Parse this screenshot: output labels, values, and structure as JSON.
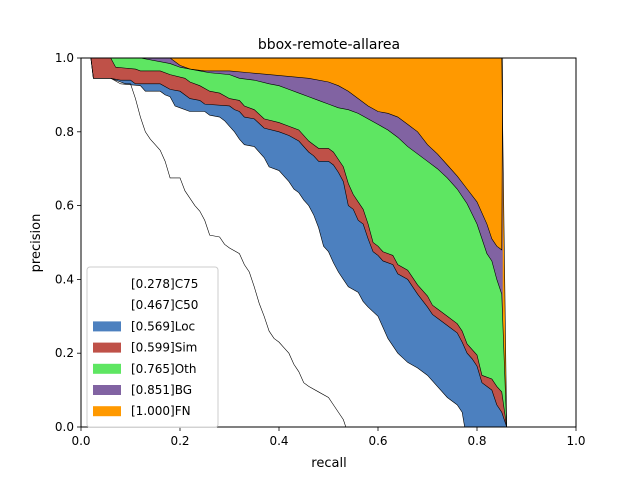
{
  "chart_data": {
    "type": "area",
    "title": "bbox-remote-allarea",
    "xlabel": "recall",
    "ylabel": "precision",
    "xlim": [
      0,
      1
    ],
    "ylim": [
      0,
      1
    ],
    "xticks": [
      "0.0",
      "0.2",
      "0.4",
      "0.6",
      "0.8",
      "1.0"
    ],
    "yticks": [
      "0.0",
      "0.2",
      "0.4",
      "0.6",
      "0.8",
      "1.0"
    ],
    "grid": false,
    "legend_position": "lower-left",
    "series": [
      {
        "name": "[0.278]C75",
        "color": "#ffffff",
        "points": [
          [
            0.0,
            1.0
          ],
          [
            0.02,
            1.0
          ],
          [
            0.025,
            0.945
          ],
          [
            0.06,
            0.945
          ],
          [
            0.08,
            0.935
          ],
          [
            0.09,
            0.93
          ],
          [
            0.1,
            0.93
          ],
          [
            0.11,
            0.89
          ],
          [
            0.12,
            0.84
          ],
          [
            0.13,
            0.8
          ],
          [
            0.14,
            0.78
          ],
          [
            0.15,
            0.765
          ],
          [
            0.16,
            0.75
          ],
          [
            0.17,
            0.72
          ],
          [
            0.18,
            0.675
          ],
          [
            0.2,
            0.675
          ],
          [
            0.21,
            0.64
          ],
          [
            0.22,
            0.62
          ],
          [
            0.23,
            0.6
          ],
          [
            0.24,
            0.585
          ],
          [
            0.25,
            0.56
          ],
          [
            0.26,
            0.52
          ],
          [
            0.28,
            0.515
          ],
          [
            0.29,
            0.495
          ],
          [
            0.3,
            0.485
          ],
          [
            0.32,
            0.47
          ],
          [
            0.33,
            0.44
          ],
          [
            0.34,
            0.42
          ],
          [
            0.35,
            0.38
          ],
          [
            0.36,
            0.335
          ],
          [
            0.37,
            0.3
          ],
          [
            0.38,
            0.26
          ],
          [
            0.39,
            0.24
          ],
          [
            0.4,
            0.23
          ],
          [
            0.41,
            0.215
          ],
          [
            0.42,
            0.2
          ],
          [
            0.43,
            0.17
          ],
          [
            0.44,
            0.15
          ],
          [
            0.45,
            0.12
          ],
          [
            0.46,
            0.11
          ],
          [
            0.48,
            0.095
          ],
          [
            0.5,
            0.08
          ],
          [
            0.51,
            0.06
          ],
          [
            0.52,
            0.04
          ],
          [
            0.53,
            0.02
          ],
          [
            0.535,
            0.0
          ]
        ]
      },
      {
        "name": "[0.467]C50",
        "color": "#ffffff",
        "points": [
          [
            0.0,
            1.0
          ],
          [
            0.02,
            1.0
          ],
          [
            0.025,
            0.945
          ],
          [
            0.06,
            0.945
          ],
          [
            0.08,
            0.93
          ],
          [
            0.12,
            0.925
          ],
          [
            0.13,
            0.91
          ],
          [
            0.16,
            0.91
          ],
          [
            0.17,
            0.9
          ],
          [
            0.18,
            0.895
          ],
          [
            0.19,
            0.87
          ],
          [
            0.2,
            0.865
          ],
          [
            0.22,
            0.855
          ],
          [
            0.25,
            0.855
          ],
          [
            0.26,
            0.845
          ],
          [
            0.28,
            0.84
          ],
          [
            0.29,
            0.83
          ],
          [
            0.3,
            0.815
          ],
          [
            0.31,
            0.8
          ],
          [
            0.32,
            0.78
          ],
          [
            0.33,
            0.765
          ],
          [
            0.35,
            0.76
          ],
          [
            0.37,
            0.73
          ],
          [
            0.38,
            0.705
          ],
          [
            0.4,
            0.695
          ],
          [
            0.41,
            0.68
          ],
          [
            0.42,
            0.665
          ],
          [
            0.43,
            0.645
          ],
          [
            0.44,
            0.635
          ],
          [
            0.45,
            0.615
          ],
          [
            0.46,
            0.6
          ],
          [
            0.47,
            0.575
          ],
          [
            0.48,
            0.54
          ],
          [
            0.49,
            0.49
          ],
          [
            0.5,
            0.475
          ],
          [
            0.51,
            0.445
          ],
          [
            0.52,
            0.42
          ],
          [
            0.53,
            0.4
          ],
          [
            0.54,
            0.38
          ],
          [
            0.56,
            0.365
          ],
          [
            0.57,
            0.34
          ],
          [
            0.58,
            0.325
          ],
          [
            0.6,
            0.3
          ],
          [
            0.61,
            0.27
          ],
          [
            0.62,
            0.24
          ],
          [
            0.64,
            0.2
          ],
          [
            0.66,
            0.175
          ],
          [
            0.68,
            0.16
          ],
          [
            0.7,
            0.14
          ],
          [
            0.72,
            0.11
          ],
          [
            0.74,
            0.08
          ],
          [
            0.76,
            0.06
          ],
          [
            0.77,
            0.04
          ],
          [
            0.775,
            0.0
          ]
        ]
      },
      {
        "name": "[0.569]Loc",
        "color": "#4c80bf",
        "points": [
          [
            0.0,
            1.0
          ],
          [
            0.02,
            1.0
          ],
          [
            0.025,
            0.945
          ],
          [
            0.06,
            0.945
          ],
          [
            0.08,
            0.94
          ],
          [
            0.1,
            0.94
          ],
          [
            0.11,
            0.93
          ],
          [
            0.16,
            0.93
          ],
          [
            0.18,
            0.915
          ],
          [
            0.2,
            0.91
          ],
          [
            0.22,
            0.89
          ],
          [
            0.24,
            0.885
          ],
          [
            0.25,
            0.875
          ],
          [
            0.3,
            0.87
          ],
          [
            0.31,
            0.86
          ],
          [
            0.32,
            0.855
          ],
          [
            0.33,
            0.84
          ],
          [
            0.35,
            0.835
          ],
          [
            0.37,
            0.81
          ],
          [
            0.4,
            0.8
          ],
          [
            0.42,
            0.79
          ],
          [
            0.44,
            0.775
          ],
          [
            0.46,
            0.745
          ],
          [
            0.47,
            0.735
          ],
          [
            0.48,
            0.72
          ],
          [
            0.5,
            0.72
          ],
          [
            0.51,
            0.71
          ],
          [
            0.52,
            0.69
          ],
          [
            0.53,
            0.665
          ],
          [
            0.54,
            0.6
          ],
          [
            0.55,
            0.59
          ],
          [
            0.56,
            0.56
          ],
          [
            0.57,
            0.55
          ],
          [
            0.58,
            0.51
          ],
          [
            0.59,
            0.475
          ],
          [
            0.6,
            0.465
          ],
          [
            0.61,
            0.45
          ],
          [
            0.63,
            0.44
          ],
          [
            0.64,
            0.415
          ],
          [
            0.66,
            0.4
          ],
          [
            0.67,
            0.38
          ],
          [
            0.68,
            0.36
          ],
          [
            0.7,
            0.325
          ],
          [
            0.71,
            0.305
          ],
          [
            0.72,
            0.295
          ],
          [
            0.74,
            0.275
          ],
          [
            0.76,
            0.255
          ],
          [
            0.77,
            0.23
          ],
          [
            0.78,
            0.2
          ],
          [
            0.79,
            0.185
          ],
          [
            0.8,
            0.165
          ],
          [
            0.81,
            0.12
          ],
          [
            0.83,
            0.1
          ],
          [
            0.84,
            0.06
          ],
          [
            0.85,
            0.04
          ],
          [
            0.86,
            0.0
          ]
        ]
      },
      {
        "name": "[0.599]Sim",
        "color": "#bf5148",
        "points": [
          [
            0.0,
            1.0
          ],
          [
            0.06,
            1.0
          ],
          [
            0.07,
            0.975
          ],
          [
            0.11,
            0.97
          ],
          [
            0.12,
            0.965
          ],
          [
            0.16,
            0.965
          ],
          [
            0.18,
            0.955
          ],
          [
            0.21,
            0.945
          ],
          [
            0.22,
            0.935
          ],
          [
            0.24,
            0.925
          ],
          [
            0.26,
            0.91
          ],
          [
            0.28,
            0.905
          ],
          [
            0.3,
            0.89
          ],
          [
            0.32,
            0.885
          ],
          [
            0.33,
            0.87
          ],
          [
            0.35,
            0.86
          ],
          [
            0.37,
            0.835
          ],
          [
            0.4,
            0.825
          ],
          [
            0.42,
            0.815
          ],
          [
            0.44,
            0.805
          ],
          [
            0.46,
            0.775
          ],
          [
            0.47,
            0.765
          ],
          [
            0.48,
            0.755
          ],
          [
            0.5,
            0.755
          ],
          [
            0.51,
            0.745
          ],
          [
            0.52,
            0.725
          ],
          [
            0.53,
            0.705
          ],
          [
            0.54,
            0.66
          ],
          [
            0.55,
            0.63
          ],
          [
            0.56,
            0.61
          ],
          [
            0.57,
            0.59
          ],
          [
            0.58,
            0.55
          ],
          [
            0.59,
            0.5
          ],
          [
            0.6,
            0.49
          ],
          [
            0.61,
            0.475
          ],
          [
            0.63,
            0.465
          ],
          [
            0.64,
            0.44
          ],
          [
            0.66,
            0.425
          ],
          [
            0.67,
            0.405
          ],
          [
            0.68,
            0.385
          ],
          [
            0.7,
            0.355
          ],
          [
            0.71,
            0.33
          ],
          [
            0.72,
            0.32
          ],
          [
            0.74,
            0.3
          ],
          [
            0.76,
            0.28
          ],
          [
            0.77,
            0.26
          ],
          [
            0.78,
            0.225
          ],
          [
            0.8,
            0.195
          ],
          [
            0.81,
            0.14
          ],
          [
            0.83,
            0.13
          ],
          [
            0.84,
            0.11
          ],
          [
            0.85,
            0.095
          ],
          [
            0.86,
            0.0
          ]
        ]
      },
      {
        "name": "[0.765]Oth",
        "color": "#5ee662",
        "points": [
          [
            0.0,
            1.0
          ],
          [
            0.12,
            1.0
          ],
          [
            0.18,
            0.985
          ],
          [
            0.2,
            0.975
          ],
          [
            0.22,
            0.97
          ],
          [
            0.24,
            0.965
          ],
          [
            0.26,
            0.96
          ],
          [
            0.3,
            0.955
          ],
          [
            0.32,
            0.945
          ],
          [
            0.35,
            0.94
          ],
          [
            0.38,
            0.93
          ],
          [
            0.4,
            0.925
          ],
          [
            0.42,
            0.915
          ],
          [
            0.44,
            0.905
          ],
          [
            0.46,
            0.895
          ],
          [
            0.48,
            0.885
          ],
          [
            0.5,
            0.875
          ],
          [
            0.52,
            0.865
          ],
          [
            0.54,
            0.86
          ],
          [
            0.56,
            0.85
          ],
          [
            0.58,
            0.835
          ],
          [
            0.6,
            0.82
          ],
          [
            0.62,
            0.805
          ],
          [
            0.64,
            0.785
          ],
          [
            0.66,
            0.76
          ],
          [
            0.68,
            0.74
          ],
          [
            0.7,
            0.72
          ],
          [
            0.72,
            0.7
          ],
          [
            0.74,
            0.675
          ],
          [
            0.76,
            0.645
          ],
          [
            0.78,
            0.605
          ],
          [
            0.8,
            0.55
          ],
          [
            0.82,
            0.47
          ],
          [
            0.83,
            0.45
          ],
          [
            0.84,
            0.4
          ],
          [
            0.85,
            0.36
          ],
          [
            0.86,
            0.0
          ]
        ]
      },
      {
        "name": "[0.851]BG",
        "color": "#8163a2",
        "points": [
          [
            0.0,
            1.0
          ],
          [
            0.18,
            1.0
          ],
          [
            0.2,
            0.98
          ],
          [
            0.22,
            0.97
          ],
          [
            0.25,
            0.965
          ],
          [
            0.3,
            0.965
          ],
          [
            0.34,
            0.96
          ],
          [
            0.38,
            0.955
          ],
          [
            0.42,
            0.95
          ],
          [
            0.46,
            0.945
          ],
          [
            0.5,
            0.935
          ],
          [
            0.52,
            0.925
          ],
          [
            0.54,
            0.91
          ],
          [
            0.56,
            0.89
          ],
          [
            0.58,
            0.87
          ],
          [
            0.6,
            0.855
          ],
          [
            0.62,
            0.85
          ],
          [
            0.64,
            0.84
          ],
          [
            0.66,
            0.82
          ],
          [
            0.68,
            0.8
          ],
          [
            0.7,
            0.765
          ],
          [
            0.72,
            0.74
          ],
          [
            0.74,
            0.71
          ],
          [
            0.76,
            0.68
          ],
          [
            0.78,
            0.645
          ],
          [
            0.8,
            0.61
          ],
          [
            0.82,
            0.55
          ],
          [
            0.83,
            0.51
          ],
          [
            0.84,
            0.49
          ],
          [
            0.85,
            0.48
          ],
          [
            0.852,
            1.0
          ]
        ]
      },
      {
        "name": "[1.000]FN",
        "color": "#ff9900",
        "points": [
          [
            0.0,
            1.0
          ],
          [
            0.85,
            1.0
          ],
          [
            0.86,
            0.0
          ],
          [
            1.0,
            0.0
          ]
        ]
      }
    ]
  }
}
